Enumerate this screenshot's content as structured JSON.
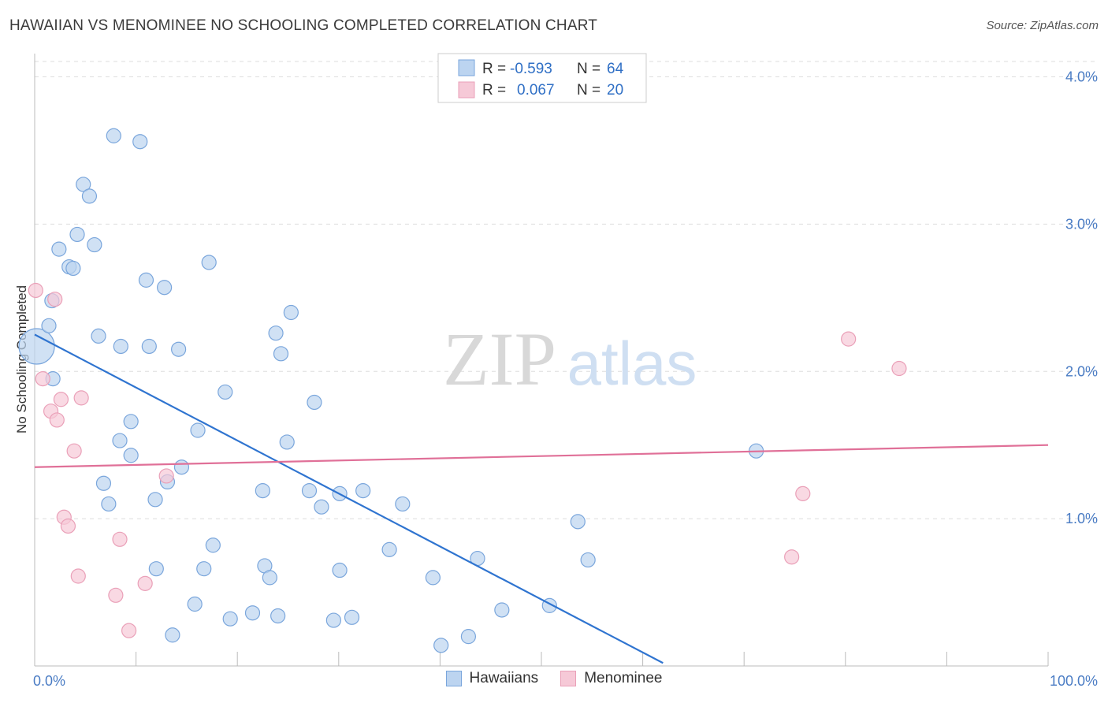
{
  "title": "HAWAIIAN VS MENOMINEE NO SCHOOLING COMPLETED CORRELATION CHART",
  "source": "Source: ZipAtlas.com",
  "watermark": {
    "zip": "ZIP",
    "atlas": "atlas"
  },
  "colors": {
    "hawaiians_fill": "#bcd4f0",
    "hawaiians_stroke": "#7aa6dc",
    "hawaiians_line": "#2f74d0",
    "menominee_fill": "#f6c9d7",
    "menominee_stroke": "#eaa0b8",
    "menominee_line": "#e07098",
    "grid": "#dddddd",
    "tick_text": "#4a7cc4"
  },
  "legend": {
    "rows": [
      {
        "r_label": "R =",
        "r_value": "-0.593",
        "n_label": "N =",
        "n_value": "64"
      },
      {
        "r_label": "R =",
        "r_value": "0.067",
        "n_label": "N =",
        "n_value": "20"
      }
    ]
  },
  "chart_data": {
    "type": "scatter",
    "title": "HAWAIIAN VS MENOMINEE NO SCHOOLING COMPLETED CORRELATION CHART",
    "xlabel": "",
    "ylabel": "No Schooling Completed",
    "xlim": [
      0,
      100
    ],
    "ylim": [
      0,
      4.2
    ],
    "x_tick_labels": [
      {
        "value": 0,
        "label": "0.0%"
      },
      {
        "value": 100,
        "label": "100.0%"
      }
    ],
    "y_ticks": [
      {
        "value": 1,
        "label": "1.0%"
      },
      {
        "value": 2,
        "label": "2.0%"
      },
      {
        "value": 3,
        "label": "3.0%"
      },
      {
        "value": 4,
        "label": "4.0%"
      }
    ],
    "grid": true,
    "legend_position": "bottom-center",
    "series": [
      {
        "name": "Hawaiians",
        "points": [
          [
            0.2,
            2.17,
            2.5
          ],
          [
            1.7,
            2.48,
            1
          ],
          [
            1.4,
            2.31,
            1
          ],
          [
            2.4,
            2.83,
            1
          ],
          [
            3.4,
            2.71,
            1
          ],
          [
            3.8,
            2.7,
            1
          ],
          [
            4.2,
            2.93,
            1
          ],
          [
            4.8,
            3.27,
            1
          ],
          [
            5.4,
            3.19,
            1
          ],
          [
            5.9,
            2.86,
            1
          ],
          [
            7.8,
            3.6,
            1
          ],
          [
            10.4,
            3.56,
            1
          ],
          [
            1.8,
            1.95,
            1
          ],
          [
            6.3,
            2.24,
            1
          ],
          [
            8.5,
            2.17,
            1
          ],
          [
            11.0,
            2.62,
            1
          ],
          [
            11.3,
            2.17,
            1
          ],
          [
            12.8,
            2.57,
            1
          ],
          [
            14.2,
            2.15,
            1
          ],
          [
            17.2,
            2.74,
            1
          ],
          [
            9.5,
            1.66,
            1
          ],
          [
            8.4,
            1.53,
            1
          ],
          [
            9.5,
            1.43,
            1
          ],
          [
            6.8,
            1.24,
            1
          ],
          [
            7.3,
            1.1,
            1
          ],
          [
            11.9,
            1.13,
            1
          ],
          [
            13.1,
            1.25,
            1
          ],
          [
            14.5,
            1.35,
            1
          ],
          [
            16.1,
            1.6,
            1
          ],
          [
            18.8,
            1.86,
            1
          ],
          [
            22.5,
            1.19,
            1
          ],
          [
            23.8,
            2.26,
            1
          ],
          [
            24.3,
            2.12,
            1
          ],
          [
            24.9,
            1.52,
            1
          ],
          [
            25.3,
            2.4,
            1
          ],
          [
            27.1,
            1.19,
            1
          ],
          [
            27.6,
            1.79,
            1
          ],
          [
            28.3,
            1.08,
            1
          ],
          [
            30.1,
            1.17,
            1
          ],
          [
            32.4,
            1.19,
            1
          ],
          [
            36.3,
            1.1,
            1
          ],
          [
            12.0,
            0.66,
            1
          ],
          [
            15.8,
            0.42,
            1
          ],
          [
            16.7,
            0.66,
            1
          ],
          [
            17.6,
            0.82,
            1
          ],
          [
            19.3,
            0.32,
            1
          ],
          [
            21.5,
            0.36,
            1
          ],
          [
            22.7,
            0.68,
            1
          ],
          [
            23.2,
            0.6,
            1
          ],
          [
            29.5,
            0.31,
            1
          ],
          [
            30.1,
            0.65,
            1
          ],
          [
            31.3,
            0.33,
            1
          ],
          [
            35.0,
            0.79,
            1
          ],
          [
            39.3,
            0.6,
            1
          ],
          [
            40.1,
            0.14,
            1
          ],
          [
            42.8,
            0.2,
            1
          ],
          [
            43.7,
            0.73,
            1
          ],
          [
            46.1,
            0.38,
            1
          ],
          [
            50.8,
            0.41,
            1
          ],
          [
            53.6,
            0.98,
            1
          ],
          [
            54.6,
            0.72,
            1
          ],
          [
            71.2,
            1.46,
            1
          ],
          [
            13.6,
            0.21,
            1
          ],
          [
            24.0,
            0.34,
            1
          ]
        ],
        "trend_line": {
          "x": [
            0,
            62
          ],
          "y": [
            2.25,
            0.02
          ]
        }
      },
      {
        "name": "Menominee",
        "points": [
          [
            0.1,
            2.55,
            1
          ],
          [
            0.8,
            1.95,
            1
          ],
          [
            1.6,
            1.73,
            1
          ],
          [
            2.2,
            1.67,
            1
          ],
          [
            2.6,
            1.81,
            1
          ],
          [
            4.6,
            1.82,
            1
          ],
          [
            3.9,
            1.46,
            1
          ],
          [
            2.9,
            1.01,
            1
          ],
          [
            3.3,
            0.95,
            1
          ],
          [
            4.3,
            0.61,
            1
          ],
          [
            8.0,
            0.48,
            1
          ],
          [
            8.4,
            0.86,
            1
          ],
          [
            9.3,
            0.24,
            1
          ],
          [
            10.9,
            0.56,
            1
          ],
          [
            13.0,
            1.29,
            1
          ],
          [
            80.3,
            2.22,
            1
          ],
          [
            85.3,
            2.02,
            1
          ],
          [
            75.8,
            1.17,
            1
          ],
          [
            74.7,
            0.74,
            1
          ],
          [
            2.0,
            2.49,
            1
          ]
        ],
        "trend_line": {
          "x": [
            0,
            100
          ],
          "y": [
            1.35,
            1.5
          ]
        }
      }
    ]
  }
}
